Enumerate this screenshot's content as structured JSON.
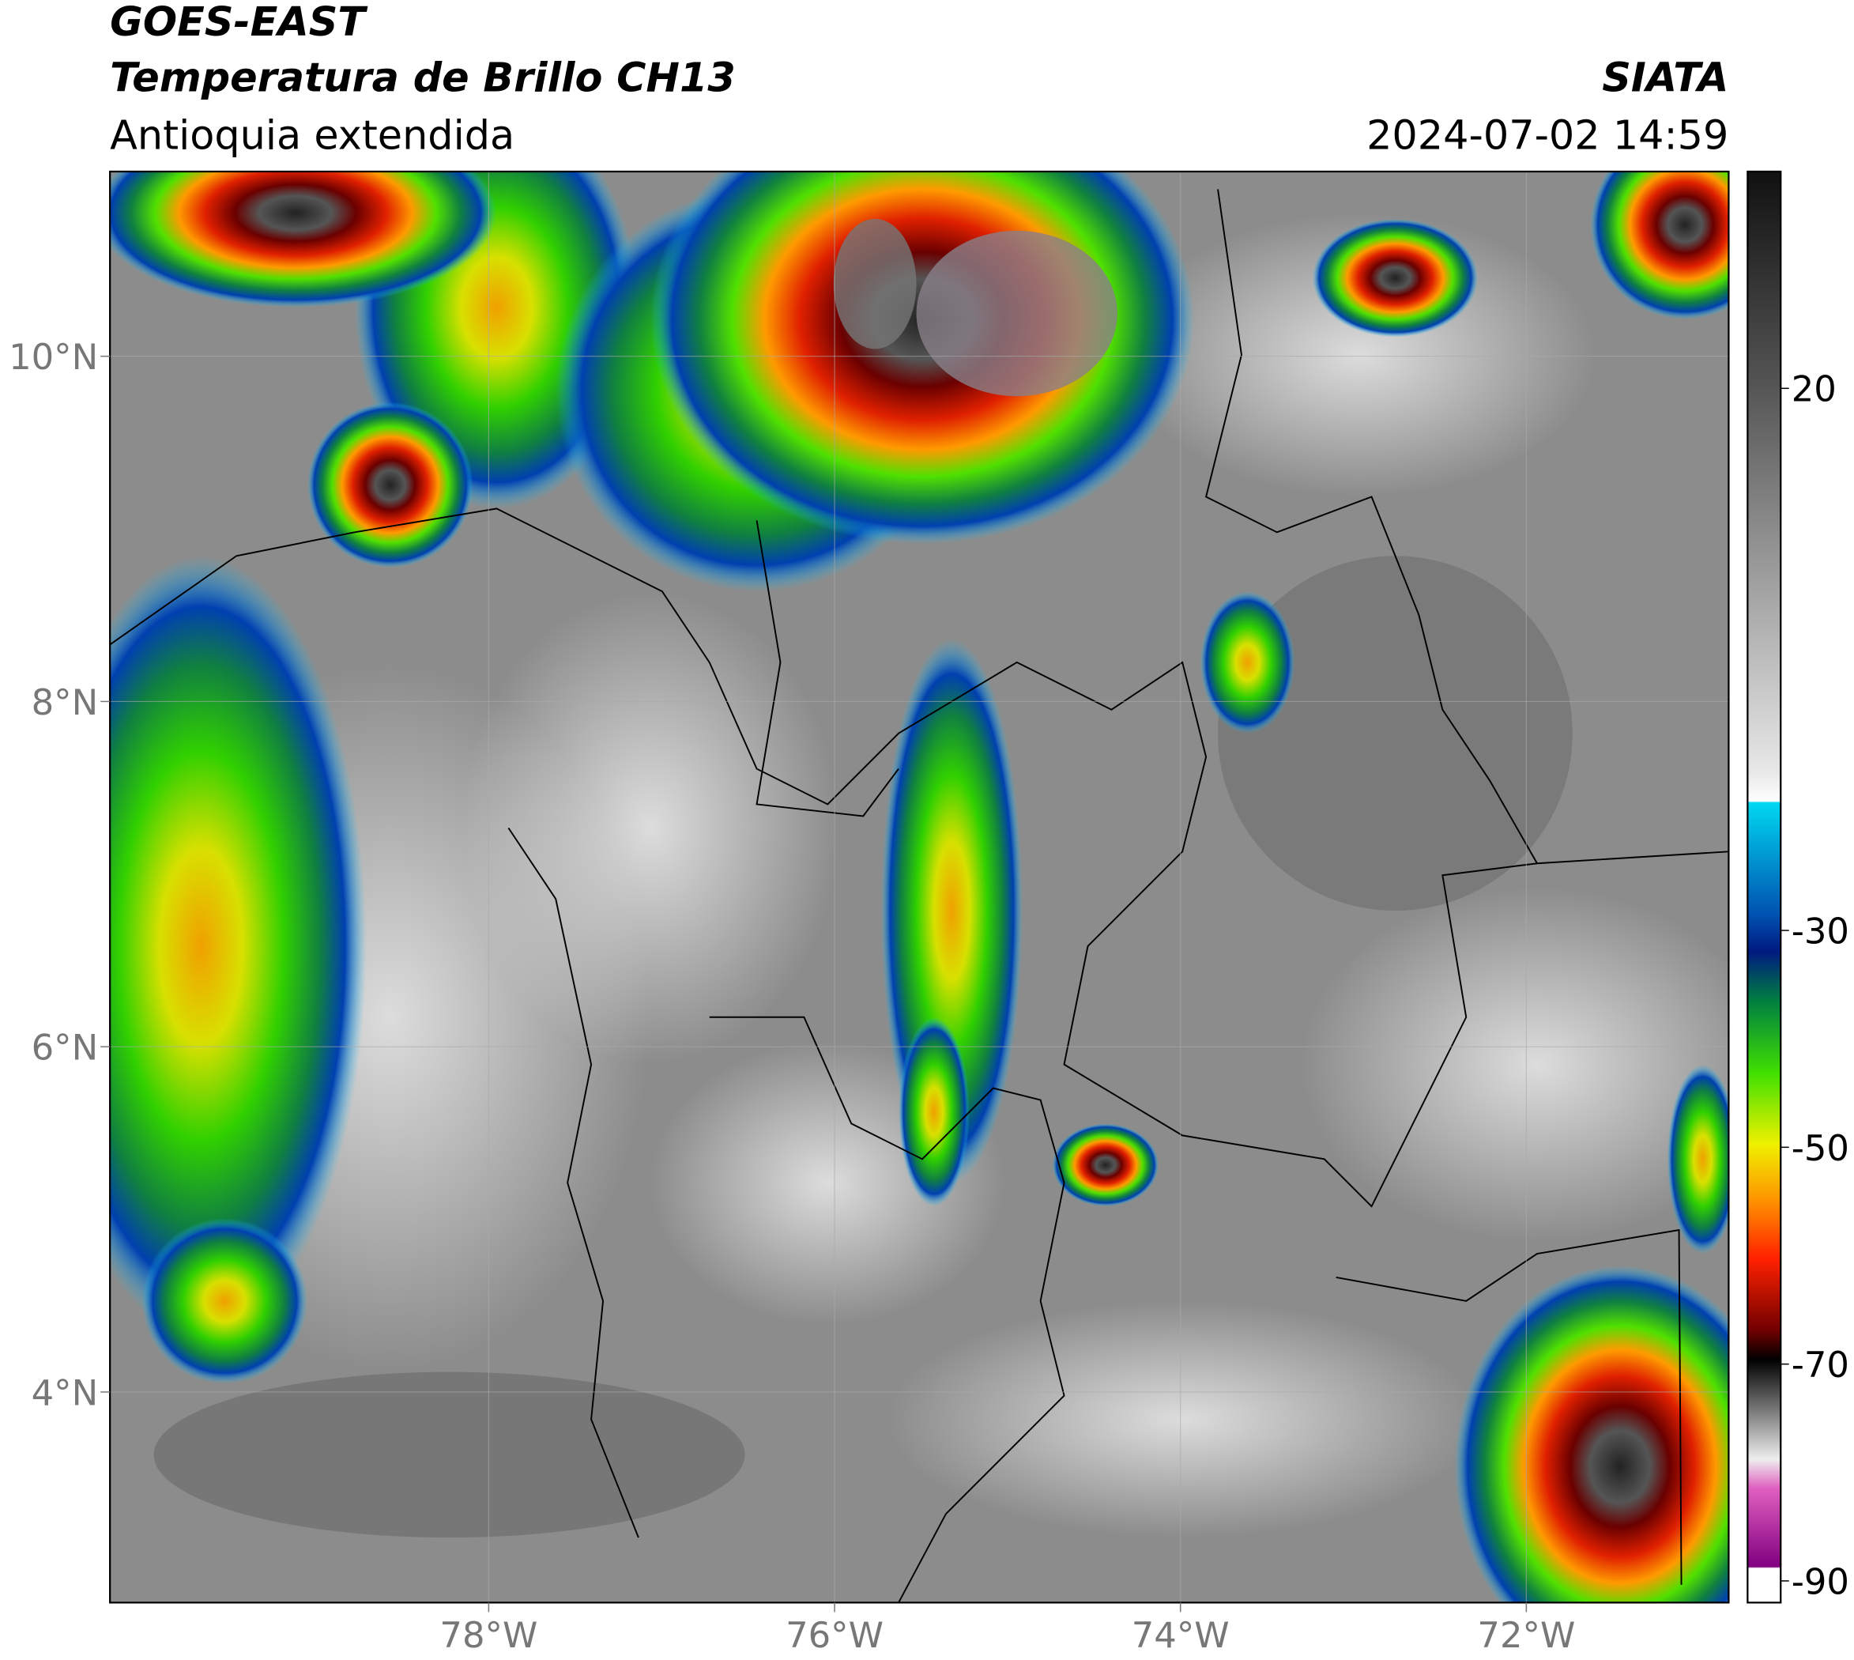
{
  "header": {
    "title": "GOES-EAST",
    "subtitle": "Temperatura de Brillo CH13",
    "region": "Antioquia extendida",
    "source": "SIATA",
    "datetime": "2024-07-02 14:59"
  },
  "map": {
    "xlim": [
      -80.19,
      -70.83
    ],
    "ylim": [
      2.78,
      11.07
    ],
    "xticks": [
      {
        "value": -78,
        "label": "78°W"
      },
      {
        "value": -76,
        "label": "76°W"
      },
      {
        "value": -74,
        "label": "74°W"
      },
      {
        "value": -72,
        "label": "72°W"
      }
    ],
    "yticks": [
      {
        "value": 10,
        "label": "10°N"
      },
      {
        "value": 8,
        "label": "8°N"
      },
      {
        "value": 6,
        "label": "6°N"
      },
      {
        "value": 4,
        "label": "4°N"
      }
    ],
    "grid": true
  },
  "colorbar": {
    "lim": [
      -92,
      40
    ],
    "ticks": [
      20,
      -30,
      -50,
      -70,
      -90
    ]
  }
}
